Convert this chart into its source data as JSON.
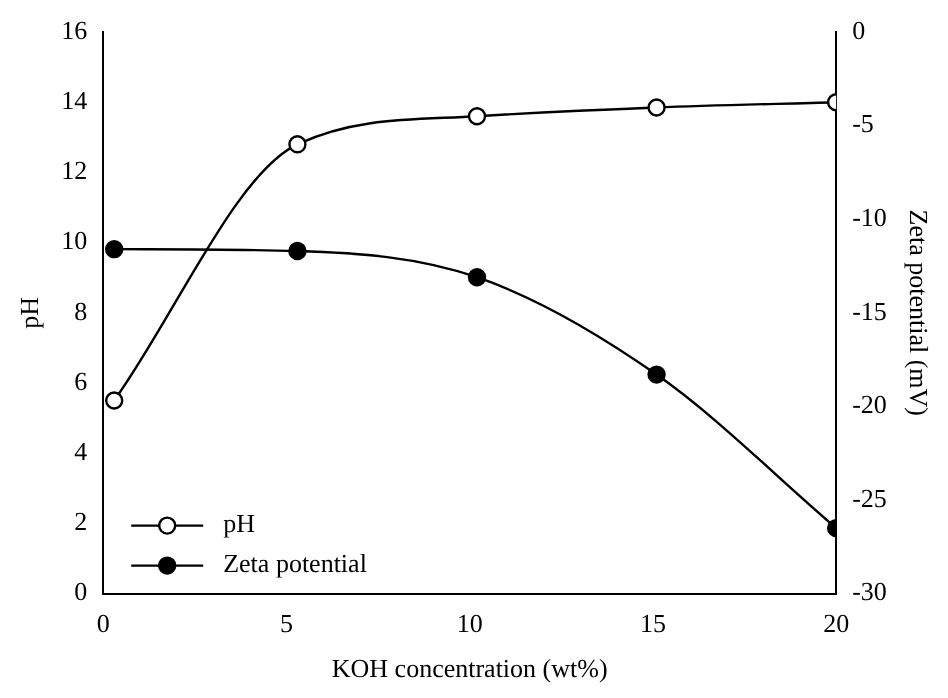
{
  "chart_data": {
    "type": "line",
    "xlabel": "KOH concentration (wt%)",
    "ylabel": "pH",
    "y2label": "Zeta potential (mV)",
    "xlim": [
      0,
      20
    ],
    "xticks": [
      0,
      5,
      10,
      15,
      20
    ],
    "ylim": [
      0,
      16
    ],
    "yticks": [
      0,
      2,
      4,
      6,
      8,
      10,
      12,
      14,
      16
    ],
    "y2lim": [
      -30,
      0
    ],
    "y2ticks": [
      -30,
      -25,
      -20,
      -15,
      -10,
      -5,
      0
    ],
    "legend": "bottom left",
    "marker": "circle",
    "line_style": "solid",
    "grid": false,
    "series": [
      {
        "name": "pH",
        "color": "#000000",
        "x": [
          0.3,
          5.3,
          10.2,
          15.1,
          20
        ],
        "values": [
          5.5,
          12.8,
          13.6,
          13.85,
          14.0
        ]
      },
      {
        "name": "Zeta potential",
        "color": "#000000",
        "axis": "y2",
        "x": [
          0.3,
          5.3,
          10.2,
          15.1,
          20
        ],
        "values": [
          -11.6,
          -11.7,
          -13.1,
          -18.3,
          -26.5
        ]
      }
    ]
  }
}
